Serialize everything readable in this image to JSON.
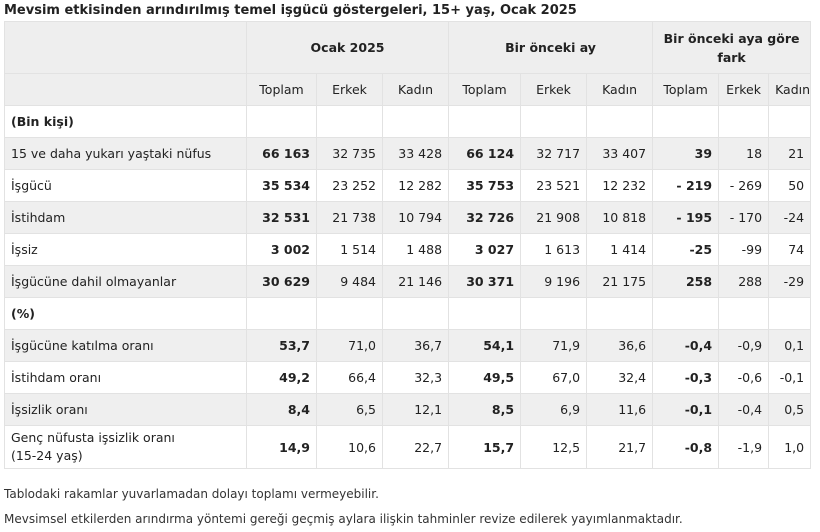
{
  "title": "Mevsim etkisinden arındırılmış temel işgücü göstergeleri, 15+ yaş, Ocak 2025",
  "header": {
    "group1": "Ocak 2025",
    "group2": "Bir önceki ay",
    "group3": "Bir önceki aya göre fark",
    "sub": [
      "Toplam",
      "Erkek",
      "Kadın",
      "Toplam",
      "Erkek",
      "Kadın",
      "Toplam",
      "Erkek",
      "Kadın"
    ]
  },
  "section1": "(Bin kişi)",
  "rows1": [
    {
      "label": "15 ve daha yukarı yaştaki nüfus",
      "values": [
        "66 163",
        "32 735",
        "33 428",
        "66 124",
        "32 717",
        "33 407",
        "39",
        "18",
        "21"
      ]
    },
    {
      "label": "İşgücü",
      "values": [
        "35 534",
        "23 252",
        "12 282",
        "35 753",
        "23 521",
        "12 232",
        "- 219",
        "- 269",
        "50"
      ]
    },
    {
      "label": "İstihdam",
      "values": [
        "32 531",
        "21 738",
        "10 794",
        "32 726",
        "21 908",
        "10 818",
        "- 195",
        "- 170",
        "-24"
      ]
    },
    {
      "label": "İşsiz",
      "values": [
        "3 002",
        "1 514",
        "1 488",
        "3 027",
        "1 613",
        "1 414",
        "-25",
        "-99",
        "74"
      ]
    },
    {
      "label": "İşgücüne dahil olmayanlar",
      "values": [
        "30 629",
        "9 484",
        "21 146",
        "30 371",
        "9 196",
        "21 175",
        "258",
        "288",
        "-29"
      ]
    }
  ],
  "section2": "(%)",
  "rows2": [
    {
      "label": "İşgücüne katılma oranı",
      "values": [
        "53,7",
        "71,0",
        "36,7",
        "54,1",
        "71,9",
        "36,6",
        "-0,4",
        "-0,9",
        "0,1"
      ]
    },
    {
      "label": "İstihdam oranı",
      "values": [
        "49,2",
        "66,4",
        "32,3",
        "49,5",
        "67,0",
        "32,4",
        "-0,3",
        "-0,6",
        "-0,1"
      ]
    },
    {
      "label": "İşsizlik oranı",
      "values": [
        "8,4",
        "6,5",
        "12,1",
        "8,5",
        "6,9",
        "11,6",
        "-0,1",
        "-0,4",
        "0,5"
      ]
    },
    {
      "label": "Genç nüfusta işsizlik oranı\n(15-24 yaş)",
      "label_line1": "Genç nüfusta işsizlik oranı",
      "label_line2": "(15-24 yaş)",
      "values": [
        "14,9",
        "10,6",
        "22,7",
        "15,7",
        "12,5",
        "21,7",
        "-0,8",
        "-1,9",
        "1,0"
      ]
    }
  ],
  "notes": [
    "Tablodaki rakamlar yuvarlamadan dolayı toplamı vermeyebilir.",
    "Mevsimsel etkilerden arındırma yöntemi gereği geçmiş aylara ilişkin tahminler revize edilerek yayımlanmaktadır."
  ]
}
